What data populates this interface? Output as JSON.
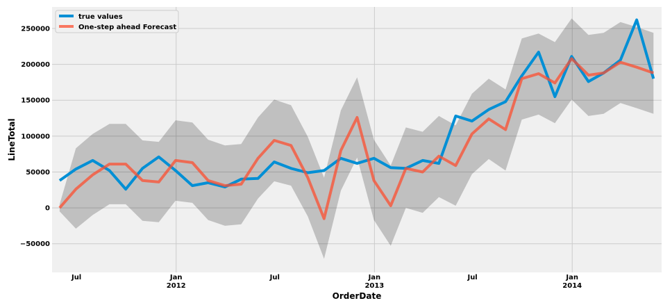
{
  "chart_data": {
    "type": "line",
    "xlabel": "OrderDate",
    "ylabel": "LineTotal",
    "ylim": [
      -90000,
      280000
    ],
    "xlim": [
      "2011-05-17",
      "2014-06-15"
    ],
    "grid": true,
    "legend_position": "top-left",
    "yticks": [
      {
        "value": 250000,
        "label": "250000"
      },
      {
        "value": 200000,
        "label": "200000"
      },
      {
        "value": 150000,
        "label": "150000"
      },
      {
        "value": 100000,
        "label": "100000"
      },
      {
        "value": 50000,
        "label": "50000"
      },
      {
        "value": 0,
        "label": "0"
      },
      {
        "value": -50000,
        "label": "−50000"
      }
    ],
    "xticks": [
      {
        "date": "2011-07-01",
        "label": "Jul",
        "sublabel": "",
        "major": false
      },
      {
        "date": "2012-01-01",
        "label": "Jan",
        "sublabel": "2012",
        "major": true
      },
      {
        "date": "2012-07-01",
        "label": "Jul",
        "sublabel": "",
        "major": false
      },
      {
        "date": "2013-01-01",
        "label": "Jan",
        "sublabel": "2013",
        "major": true
      },
      {
        "date": "2013-07-01",
        "label": "Jul",
        "sublabel": "",
        "major": false
      },
      {
        "date": "2014-01-01",
        "label": "Jan",
        "sublabel": "2014",
        "major": true
      }
    ],
    "x": [
      "2011-05-31",
      "2011-06-30",
      "2011-07-31",
      "2011-08-31",
      "2011-09-30",
      "2011-10-31",
      "2011-11-30",
      "2011-12-31",
      "2012-01-31",
      "2012-02-29",
      "2012-03-31",
      "2012-04-30",
      "2012-05-31",
      "2012-06-30",
      "2012-07-31",
      "2012-08-31",
      "2012-09-30",
      "2012-10-31",
      "2012-11-30",
      "2012-12-31",
      "2013-01-31",
      "2013-02-28",
      "2013-03-31",
      "2013-04-30",
      "2013-05-31",
      "2013-06-30",
      "2013-07-31",
      "2013-08-31",
      "2013-09-30",
      "2013-10-31",
      "2013-11-30",
      "2013-12-31",
      "2014-01-31",
      "2014-02-28",
      "2014-03-31",
      "2014-04-30",
      "2014-05-31"
    ],
    "series": [
      {
        "name": "true values",
        "color": "#008fd5",
        "values": [
          38000,
          54000,
          66000,
          52000,
          26000,
          55000,
          71000,
          52000,
          31000,
          35000,
          29000,
          40000,
          41000,
          64000,
          55000,
          49000,
          52000,
          69000,
          62000,
          69000,
          56000,
          55000,
          66000,
          62000,
          128000,
          121000,
          137000,
          148000,
          184000,
          217000,
          155000,
          211000,
          176000,
          188000,
          206000,
          262000,
          180000
        ]
      },
      {
        "name": "One-step ahead Forecast",
        "color": "#fc4f30",
        "values": [
          0,
          26000,
          46000,
          61000,
          61000,
          38000,
          36000,
          66000,
          63000,
          38000,
          31000,
          33000,
          69000,
          94000,
          87000,
          42000,
          -15000,
          80000,
          126000,
          38000,
          3000,
          55000,
          50000,
          72000,
          59000,
          103000,
          124000,
          109000,
          180000,
          187000,
          174000,
          208000,
          185000,
          188000,
          203000,
          196000,
          188000
        ]
      }
    ],
    "confidence_band": {
      "color": "#000000",
      "lower": [
        -5000,
        -29000,
        -10000,
        5000,
        5000,
        -18000,
        -20000,
        10000,
        7000,
        -17000,
        -25000,
        -23000,
        13000,
        37000,
        31000,
        -12000,
        -71000,
        24000,
        70000,
        -17000,
        -53000,
        0,
        -7000,
        15000,
        3000,
        47000,
        68000,
        52000,
        123000,
        130000,
        118000,
        151000,
        128000,
        131000,
        146000,
        139000,
        131000
      ],
      "upper": [
        5000,
        83000,
        103000,
        117000,
        117000,
        94000,
        92000,
        122000,
        119000,
        95000,
        87000,
        89000,
        126000,
        151000,
        143000,
        99000,
        42000,
        136000,
        182000,
        95000,
        59000,
        112000,
        106000,
        128000,
        115000,
        159000,
        180000,
        165000,
        236000,
        243000,
        231000,
        264000,
        241000,
        244000,
        259000,
        252000,
        244000
      ]
    }
  }
}
